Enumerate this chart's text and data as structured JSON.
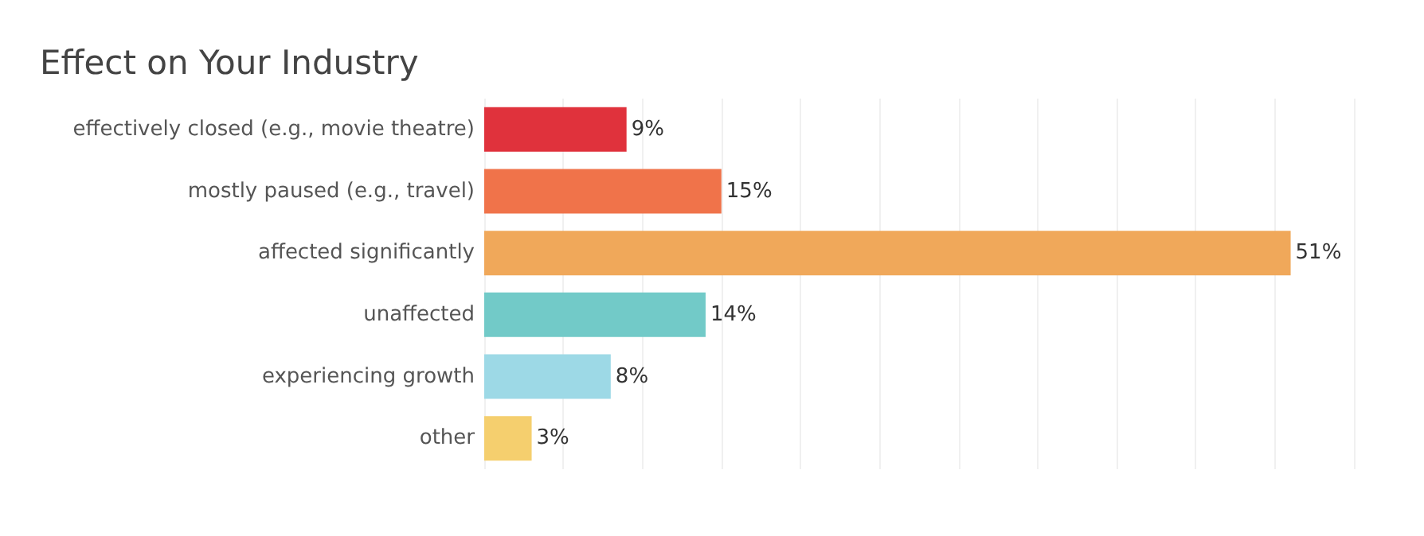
{
  "chart_data": {
    "type": "bar",
    "orientation": "horizontal",
    "title": "Effect on Your Industry",
    "categories": [
      "effectively closed (e.g., movie theatre)",
      "mostly paused (e.g., travel)",
      "affected significantly",
      "unaffected",
      "experiencing growth",
      "other"
    ],
    "values": [
      9,
      15,
      51,
      14,
      8,
      3
    ],
    "colors": [
      "#e0323c",
      "#f0734a",
      "#f0a85a",
      "#72cac8",
      "#9dd9e6",
      "#f5cf6e"
    ],
    "value_labels": [
      "9%",
      "15%",
      "51%",
      "14%",
      "8%",
      "3%"
    ],
    "xlim": [
      0,
      55
    ],
    "xticks": [
      {
        "value": 0,
        "label": null
      },
      {
        "value": 5,
        "label": null
      },
      {
        "value": 10,
        "label": null
      },
      {
        "value": 15,
        "label": null
      },
      {
        "value": 20,
        "label": null
      },
      {
        "value": 25,
        "label": null
      },
      {
        "value": 30,
        "label": null
      },
      {
        "value": 35,
        "label": null
      },
      {
        "value": 40,
        "label": null
      },
      {
        "value": 45,
        "label": null
      },
      {
        "value": 50,
        "label": null
      },
      {
        "value": 55,
        "label": null
      }
    ],
    "grid": "x"
  }
}
